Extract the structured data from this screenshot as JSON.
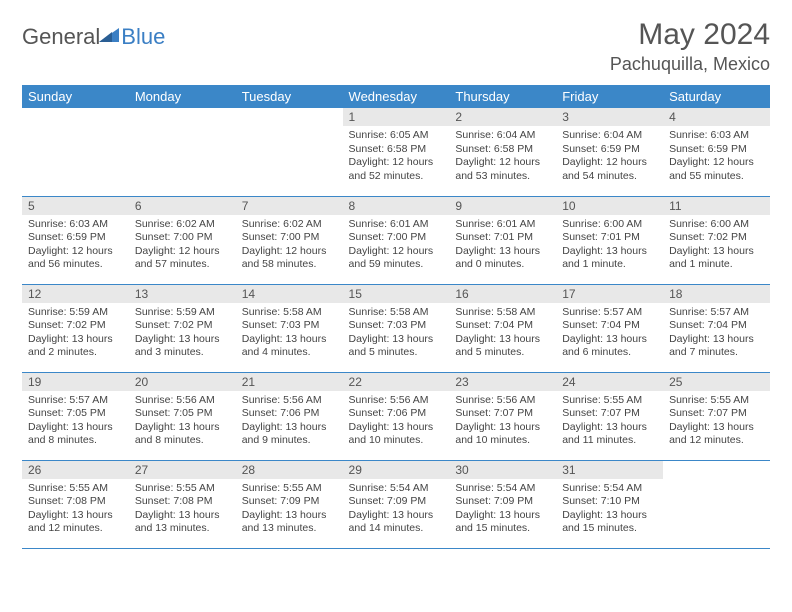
{
  "logo": {
    "part1": "General",
    "part2": "Blue"
  },
  "title": "May 2024",
  "location": "Pachuquilla, Mexico",
  "colors": {
    "header_bg": "#3b87c8",
    "header_fg": "#ffffff",
    "daynum_bg": "#e8e8e8",
    "border": "#3b87c8",
    "logo_gray": "#555555",
    "logo_blue": "#3b7fc4"
  },
  "day_headers": [
    "Sunday",
    "Monday",
    "Tuesday",
    "Wednesday",
    "Thursday",
    "Friday",
    "Saturday"
  ],
  "weeks": [
    [
      null,
      null,
      null,
      {
        "n": "1",
        "sr": "6:05 AM",
        "ss": "6:58 PM",
        "dl": "12 hours and 52 minutes."
      },
      {
        "n": "2",
        "sr": "6:04 AM",
        "ss": "6:58 PM",
        "dl": "12 hours and 53 minutes."
      },
      {
        "n": "3",
        "sr": "6:04 AM",
        "ss": "6:59 PM",
        "dl": "12 hours and 54 minutes."
      },
      {
        "n": "4",
        "sr": "6:03 AM",
        "ss": "6:59 PM",
        "dl": "12 hours and 55 minutes."
      }
    ],
    [
      {
        "n": "5",
        "sr": "6:03 AM",
        "ss": "6:59 PM",
        "dl": "12 hours and 56 minutes."
      },
      {
        "n": "6",
        "sr": "6:02 AM",
        "ss": "7:00 PM",
        "dl": "12 hours and 57 minutes."
      },
      {
        "n": "7",
        "sr": "6:02 AM",
        "ss": "7:00 PM",
        "dl": "12 hours and 58 minutes."
      },
      {
        "n": "8",
        "sr": "6:01 AM",
        "ss": "7:00 PM",
        "dl": "12 hours and 59 minutes."
      },
      {
        "n": "9",
        "sr": "6:01 AM",
        "ss": "7:01 PM",
        "dl": "13 hours and 0 minutes."
      },
      {
        "n": "10",
        "sr": "6:00 AM",
        "ss": "7:01 PM",
        "dl": "13 hours and 1 minute."
      },
      {
        "n": "11",
        "sr": "6:00 AM",
        "ss": "7:02 PM",
        "dl": "13 hours and 1 minute."
      }
    ],
    [
      {
        "n": "12",
        "sr": "5:59 AM",
        "ss": "7:02 PM",
        "dl": "13 hours and 2 minutes."
      },
      {
        "n": "13",
        "sr": "5:59 AM",
        "ss": "7:02 PM",
        "dl": "13 hours and 3 minutes."
      },
      {
        "n": "14",
        "sr": "5:58 AM",
        "ss": "7:03 PM",
        "dl": "13 hours and 4 minutes."
      },
      {
        "n": "15",
        "sr": "5:58 AM",
        "ss": "7:03 PM",
        "dl": "13 hours and 5 minutes."
      },
      {
        "n": "16",
        "sr": "5:58 AM",
        "ss": "7:04 PM",
        "dl": "13 hours and 5 minutes."
      },
      {
        "n": "17",
        "sr": "5:57 AM",
        "ss": "7:04 PM",
        "dl": "13 hours and 6 minutes."
      },
      {
        "n": "18",
        "sr": "5:57 AM",
        "ss": "7:04 PM",
        "dl": "13 hours and 7 minutes."
      }
    ],
    [
      {
        "n": "19",
        "sr": "5:57 AM",
        "ss": "7:05 PM",
        "dl": "13 hours and 8 minutes."
      },
      {
        "n": "20",
        "sr": "5:56 AM",
        "ss": "7:05 PM",
        "dl": "13 hours and 8 minutes."
      },
      {
        "n": "21",
        "sr": "5:56 AM",
        "ss": "7:06 PM",
        "dl": "13 hours and 9 minutes."
      },
      {
        "n": "22",
        "sr": "5:56 AM",
        "ss": "7:06 PM",
        "dl": "13 hours and 10 minutes."
      },
      {
        "n": "23",
        "sr": "5:56 AM",
        "ss": "7:07 PM",
        "dl": "13 hours and 10 minutes."
      },
      {
        "n": "24",
        "sr": "5:55 AM",
        "ss": "7:07 PM",
        "dl": "13 hours and 11 minutes."
      },
      {
        "n": "25",
        "sr": "5:55 AM",
        "ss": "7:07 PM",
        "dl": "13 hours and 12 minutes."
      }
    ],
    [
      {
        "n": "26",
        "sr": "5:55 AM",
        "ss": "7:08 PM",
        "dl": "13 hours and 12 minutes."
      },
      {
        "n": "27",
        "sr": "5:55 AM",
        "ss": "7:08 PM",
        "dl": "13 hours and 13 minutes."
      },
      {
        "n": "28",
        "sr": "5:55 AM",
        "ss": "7:09 PM",
        "dl": "13 hours and 13 minutes."
      },
      {
        "n": "29",
        "sr": "5:54 AM",
        "ss": "7:09 PM",
        "dl": "13 hours and 14 minutes."
      },
      {
        "n": "30",
        "sr": "5:54 AM",
        "ss": "7:09 PM",
        "dl": "13 hours and 15 minutes."
      },
      {
        "n": "31",
        "sr": "5:54 AM",
        "ss": "7:10 PM",
        "dl": "13 hours and 15 minutes."
      },
      null
    ]
  ],
  "labels": {
    "sunrise": "Sunrise:",
    "sunset": "Sunset:",
    "daylight": "Daylight:"
  }
}
